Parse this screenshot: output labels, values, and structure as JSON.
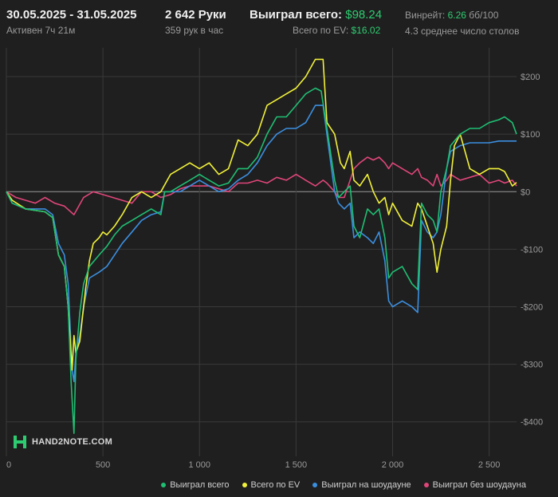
{
  "header": {
    "date_range": "30.05.2025 - 31.05.2025",
    "active": "Активен 7ч 21м",
    "hands": "2 642 Руки",
    "hands_per_hour": "359 рук в час",
    "won_total_label": "Выиграл всего:",
    "won_total_value": "$98.24",
    "ev_total_label": "Всего по EV:",
    "ev_total_value": "$16.02",
    "winrate_label": "Винрейт:",
    "winrate_value": "6.26",
    "winrate_unit": "бб/100",
    "avg_tables": "4.3 среднее число столов"
  },
  "logo": {
    "text": "HAND2NOTE.COM",
    "icon": "h2n-logo-icon"
  },
  "colors": {
    "background": "#1f1f1f",
    "grid": "#3a3a3a",
    "zero_line": "#9a9a9a",
    "won_total": "#1fbf73",
    "ev": "#f1f13a",
    "showdown": "#3b8fe0",
    "non_showdown": "#e0457a"
  },
  "chart_data": {
    "type": "line",
    "xlim": [
      0,
      2642
    ],
    "ylim": [
      -460,
      250
    ],
    "x_ticks": [
      0,
      500,
      1000,
      1500,
      2000,
      2500
    ],
    "x_tick_labels": [
      "0",
      "500",
      "1 000",
      "1 500",
      "2 000",
      "2 500"
    ],
    "y_ticks": [
      200,
      100,
      0,
      -100,
      -200,
      -300,
      -400
    ],
    "y_tick_labels": [
      "$200",
      "$100",
      "$0",
      "-$100",
      "-$200",
      "-$300",
      "-$400"
    ],
    "grid": true,
    "legend_position": "bottom-right",
    "series": [
      {
        "name": "Выиграл всего",
        "color_key": "won_total",
        "points": [
          [
            0,
            0
          ],
          [
            30,
            -20
          ],
          [
            100,
            -30
          ],
          [
            200,
            -35
          ],
          [
            240,
            -45
          ],
          [
            270,
            -110
          ],
          [
            300,
            -130
          ],
          [
            320,
            -200
          ],
          [
            335,
            -330
          ],
          [
            350,
            -420
          ],
          [
            360,
            -290
          ],
          [
            380,
            -210
          ],
          [
            400,
            -160
          ],
          [
            430,
            -130
          ],
          [
            480,
            -110
          ],
          [
            520,
            -95
          ],
          [
            560,
            -75
          ],
          [
            600,
            -60
          ],
          [
            650,
            -50
          ],
          [
            700,
            -40
          ],
          [
            750,
            -30
          ],
          [
            800,
            -40
          ],
          [
            820,
            0
          ],
          [
            850,
            0
          ],
          [
            900,
            10
          ],
          [
            950,
            20
          ],
          [
            1000,
            30
          ],
          [
            1050,
            20
          ],
          [
            1100,
            10
          ],
          [
            1150,
            15
          ],
          [
            1200,
            40
          ],
          [
            1250,
            40
          ],
          [
            1300,
            60
          ],
          [
            1350,
            100
          ],
          [
            1400,
            130
          ],
          [
            1450,
            130
          ],
          [
            1500,
            150
          ],
          [
            1550,
            170
          ],
          [
            1600,
            180
          ],
          [
            1630,
            175
          ],
          [
            1660,
            110
          ],
          [
            1700,
            20
          ],
          [
            1720,
            -10
          ],
          [
            1750,
            0
          ],
          [
            1780,
            10
          ],
          [
            1800,
            -60
          ],
          [
            1830,
            -80
          ],
          [
            1870,
            -30
          ],
          [
            1900,
            -40
          ],
          [
            1930,
            -30
          ],
          [
            1960,
            -80
          ],
          [
            1980,
            -150
          ],
          [
            2000,
            -140
          ],
          [
            2050,
            -130
          ],
          [
            2100,
            -160
          ],
          [
            2130,
            -170
          ],
          [
            2150,
            -20
          ],
          [
            2180,
            -40
          ],
          [
            2210,
            -50
          ],
          [
            2230,
            -70
          ],
          [
            2250,
            0
          ],
          [
            2280,
            40
          ],
          [
            2300,
            80
          ],
          [
            2350,
            100
          ],
          [
            2400,
            110
          ],
          [
            2450,
            110
          ],
          [
            2500,
            120
          ],
          [
            2550,
            125
          ],
          [
            2580,
            130
          ],
          [
            2620,
            120
          ],
          [
            2642,
            100
          ]
        ]
      },
      {
        "name": "Всего по EV",
        "color_key": "ev",
        "points": [
          [
            0,
            0
          ],
          [
            30,
            -15
          ],
          [
            100,
            -30
          ],
          [
            200,
            -35
          ],
          [
            240,
            -45
          ],
          [
            270,
            -110
          ],
          [
            300,
            -130
          ],
          [
            320,
            -200
          ],
          [
            340,
            -310
          ],
          [
            350,
            -250
          ],
          [
            360,
            -280
          ],
          [
            380,
            -260
          ],
          [
            410,
            -170
          ],
          [
            430,
            -120
          ],
          [
            450,
            -90
          ],
          [
            480,
            -80
          ],
          [
            500,
            -70
          ],
          [
            520,
            -75
          ],
          [
            560,
            -60
          ],
          [
            600,
            -40
          ],
          [
            650,
            -10
          ],
          [
            700,
            0
          ],
          [
            750,
            -10
          ],
          [
            800,
            0
          ],
          [
            850,
            30
          ],
          [
            900,
            40
          ],
          [
            950,
            50
          ],
          [
            1000,
            40
          ],
          [
            1050,
            50
          ],
          [
            1100,
            30
          ],
          [
            1150,
            40
          ],
          [
            1200,
            90
          ],
          [
            1250,
            80
          ],
          [
            1300,
            100
          ],
          [
            1350,
            150
          ],
          [
            1400,
            160
          ],
          [
            1450,
            170
          ],
          [
            1500,
            180
          ],
          [
            1550,
            200
          ],
          [
            1600,
            230
          ],
          [
            1640,
            230
          ],
          [
            1660,
            120
          ],
          [
            1700,
            100
          ],
          [
            1730,
            50
          ],
          [
            1750,
            40
          ],
          [
            1780,
            70
          ],
          [
            1800,
            20
          ],
          [
            1830,
            10
          ],
          [
            1870,
            30
          ],
          [
            1900,
            0
          ],
          [
            1930,
            -20
          ],
          [
            1960,
            -10
          ],
          [
            1980,
            -40
          ],
          [
            2000,
            -20
          ],
          [
            2050,
            -50
          ],
          [
            2100,
            -60
          ],
          [
            2130,
            -20
          ],
          [
            2150,
            -30
          ],
          [
            2180,
            -60
          ],
          [
            2210,
            -90
          ],
          [
            2230,
            -140
          ],
          [
            2250,
            -100
          ],
          [
            2280,
            -60
          ],
          [
            2300,
            20
          ],
          [
            2320,
            80
          ],
          [
            2350,
            100
          ],
          [
            2400,
            40
          ],
          [
            2450,
            30
          ],
          [
            2500,
            40
          ],
          [
            2550,
            40
          ],
          [
            2580,
            35
          ],
          [
            2620,
            10
          ],
          [
            2642,
            16
          ]
        ]
      },
      {
        "name": "Выиграл на шоудауне",
        "color_key": "showdown",
        "points": [
          [
            0,
            0
          ],
          [
            30,
            -20
          ],
          [
            100,
            -30
          ],
          [
            200,
            -30
          ],
          [
            240,
            -40
          ],
          [
            270,
            -90
          ],
          [
            300,
            -110
          ],
          [
            320,
            -160
          ],
          [
            340,
            -310
          ],
          [
            350,
            -330
          ],
          [
            360,
            -280
          ],
          [
            380,
            -250
          ],
          [
            400,
            -200
          ],
          [
            430,
            -150
          ],
          [
            480,
            -140
          ],
          [
            520,
            -130
          ],
          [
            560,
            -110
          ],
          [
            600,
            -90
          ],
          [
            650,
            -70
          ],
          [
            700,
            -50
          ],
          [
            750,
            -40
          ],
          [
            800,
            -35
          ],
          [
            820,
            0
          ],
          [
            850,
            0
          ],
          [
            900,
            0
          ],
          [
            950,
            10
          ],
          [
            1000,
            20
          ],
          [
            1050,
            10
          ],
          [
            1100,
            0
          ],
          [
            1150,
            5
          ],
          [
            1200,
            20
          ],
          [
            1250,
            30
          ],
          [
            1300,
            50
          ],
          [
            1350,
            80
          ],
          [
            1400,
            100
          ],
          [
            1450,
            110
          ],
          [
            1500,
            110
          ],
          [
            1550,
            120
          ],
          [
            1600,
            150
          ],
          [
            1640,
            150
          ],
          [
            1660,
            100
          ],
          [
            1700,
            0
          ],
          [
            1720,
            -20
          ],
          [
            1750,
            -30
          ],
          [
            1780,
            -20
          ],
          [
            1800,
            -80
          ],
          [
            1830,
            -70
          ],
          [
            1870,
            -80
          ],
          [
            1900,
            -90
          ],
          [
            1930,
            -70
          ],
          [
            1960,
            -120
          ],
          [
            1980,
            -190
          ],
          [
            2000,
            -200
          ],
          [
            2050,
            -190
          ],
          [
            2100,
            -200
          ],
          [
            2130,
            -210
          ],
          [
            2150,
            -50
          ],
          [
            2180,
            -70
          ],
          [
            2210,
            -80
          ],
          [
            2230,
            -70
          ],
          [
            2250,
            -40
          ],
          [
            2280,
            40
          ],
          [
            2300,
            70
          ],
          [
            2350,
            80
          ],
          [
            2400,
            85
          ],
          [
            2450,
            85
          ],
          [
            2500,
            85
          ],
          [
            2550,
            88
          ],
          [
            2580,
            88
          ],
          [
            2620,
            88
          ],
          [
            2642,
            88
          ]
        ]
      },
      {
        "name": "Выиграл без шоудауна",
        "color_key": "non_showdown",
        "points": [
          [
            0,
            0
          ],
          [
            50,
            -10
          ],
          [
            100,
            -15
          ],
          [
            150,
            -20
          ],
          [
            200,
            -10
          ],
          [
            250,
            -20
          ],
          [
            300,
            -25
          ],
          [
            350,
            -40
          ],
          [
            400,
            -10
          ],
          [
            450,
            0
          ],
          [
            500,
            -5
          ],
          [
            550,
            -10
          ],
          [
            600,
            -15
          ],
          [
            650,
            -20
          ],
          [
            700,
            0
          ],
          [
            750,
            0
          ],
          [
            800,
            -10
          ],
          [
            850,
            -5
          ],
          [
            900,
            5
          ],
          [
            950,
            10
          ],
          [
            1000,
            10
          ],
          [
            1050,
            10
          ],
          [
            1100,
            5
          ],
          [
            1150,
            0
          ],
          [
            1200,
            15
          ],
          [
            1250,
            15
          ],
          [
            1300,
            20
          ],
          [
            1350,
            15
          ],
          [
            1400,
            25
          ],
          [
            1450,
            20
          ],
          [
            1500,
            30
          ],
          [
            1550,
            20
          ],
          [
            1600,
            10
          ],
          [
            1640,
            20
          ],
          [
            1660,
            15
          ],
          [
            1700,
            0
          ],
          [
            1720,
            -10
          ],
          [
            1750,
            -10
          ],
          [
            1780,
            20
          ],
          [
            1800,
            40
          ],
          [
            1830,
            50
          ],
          [
            1870,
            60
          ],
          [
            1900,
            55
          ],
          [
            1930,
            60
          ],
          [
            1960,
            50
          ],
          [
            1980,
            40
          ],
          [
            2000,
            50
          ],
          [
            2050,
            40
          ],
          [
            2100,
            30
          ],
          [
            2130,
            40
          ],
          [
            2150,
            25
          ],
          [
            2180,
            20
          ],
          [
            2210,
            10
          ],
          [
            2230,
            30
          ],
          [
            2250,
            10
          ],
          [
            2280,
            20
          ],
          [
            2300,
            30
          ],
          [
            2350,
            20
          ],
          [
            2400,
            25
          ],
          [
            2450,
            30
          ],
          [
            2500,
            15
          ],
          [
            2550,
            20
          ],
          [
            2580,
            15
          ],
          [
            2620,
            20
          ],
          [
            2642,
            10
          ]
        ]
      }
    ]
  }
}
